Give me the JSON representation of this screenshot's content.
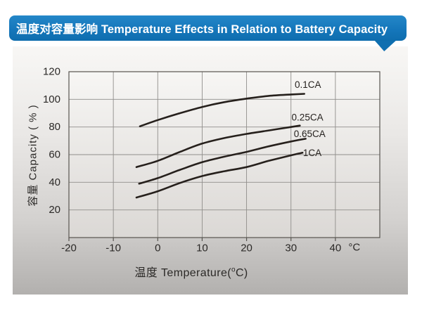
{
  "title_banner": {
    "text": "温度对容量影响 Temperature Effects in Relation to Battery Capacity"
  },
  "colors": {
    "banner_blue": "#1577bb",
    "curve": "#26201c",
    "grid": "#908e8b",
    "plot_border": "#57544f",
    "text": "#2b2927",
    "plot_bg_top": "#f7f6f4",
    "plot_bg_bottom": "#dbd8d5"
  },
  "chart_data": {
    "type": "line",
    "title": "温度对容量影响 Temperature Effects in Relation to Battery Capacity",
    "xlabel": {
      "pre": "温度  Temperature(",
      "sup": "o",
      "post": "C)"
    },
    "ylabel": "容量 Capacity ( % )",
    "x_unit": "°C",
    "xlim": [
      -20,
      50
    ],
    "ylim": [
      0,
      120
    ],
    "x_ticks": [
      -20,
      -10,
      0,
      10,
      20,
      30,
      40
    ],
    "y_ticks": [
      120,
      100,
      80,
      60,
      40,
      20
    ],
    "grid": true,
    "legend_position": "inline-labels-right",
    "series": [
      {
        "name": "0.1CA",
        "points": [
          [
            -4,
            80.5
          ],
          [
            0,
            85
          ],
          [
            5,
            90
          ],
          [
            10,
            94.5
          ],
          [
            15,
            98
          ],
          [
            20,
            100.5
          ],
          [
            25,
            102.5
          ],
          [
            30,
            103.5
          ],
          [
            33,
            104
          ]
        ],
        "label_at": [
          33.8,
          110.5
        ]
      },
      {
        "name": "0.25CA",
        "points": [
          [
            -4.8,
            51
          ],
          [
            0,
            55.5
          ],
          [
            5,
            62
          ],
          [
            10,
            68
          ],
          [
            15,
            72
          ],
          [
            20,
            75
          ],
          [
            25,
            77.5
          ],
          [
            30,
            80
          ],
          [
            32,
            81
          ]
        ],
        "label_at": [
          33.7,
          87
        ]
      },
      {
        "name": "0.65CA",
        "points": [
          [
            -4.2,
            39
          ],
          [
            0,
            43
          ],
          [
            5,
            49
          ],
          [
            10,
            54.5
          ],
          [
            15,
            58.5
          ],
          [
            20,
            62
          ],
          [
            25,
            66
          ],
          [
            30,
            69.5
          ],
          [
            33.3,
            71.5
          ]
        ],
        "label_at": [
          34.2,
          75
        ]
      },
      {
        "name": "1CA",
        "points": [
          [
            -4.8,
            29
          ],
          [
            0,
            33.5
          ],
          [
            5,
            39.5
          ],
          [
            10,
            44.5
          ],
          [
            15,
            48
          ],
          [
            20,
            51
          ],
          [
            25,
            55.5
          ],
          [
            30,
            59.5
          ],
          [
            32.6,
            61.4
          ]
        ],
        "label_at": [
          34.8,
          61.3
        ]
      }
    ]
  }
}
